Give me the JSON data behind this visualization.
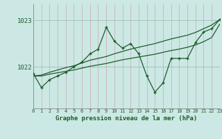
{
  "title": "Graphe pression niveau de la mer (hPa)",
  "bg_color": "#cce8e4",
  "line_color": "#1a5c2a",
  "x_labels": [
    "0",
    "1",
    "2",
    "3",
    "4",
    "5",
    "6",
    "7",
    "8",
    "9",
    "10",
    "11",
    "12",
    "13",
    "14",
    "15",
    "16",
    "17",
    "18",
    "19",
    "20",
    "21",
    "22",
    "23"
  ],
  "hours": [
    0,
    1,
    2,
    3,
    4,
    5,
    6,
    7,
    8,
    9,
    10,
    11,
    12,
    13,
    14,
    15,
    16,
    17,
    18,
    19,
    20,
    21,
    22,
    23
  ],
  "series_main": [
    1021.85,
    1021.55,
    1021.72,
    1021.8,
    1021.88,
    1022.0,
    1022.1,
    1022.28,
    1022.38,
    1022.85,
    1022.55,
    1022.4,
    1022.5,
    1022.28,
    1021.8,
    1021.45,
    1021.65,
    1022.18,
    1022.18,
    1022.18,
    1022.52,
    1022.75,
    1022.82,
    1023.02
  ],
  "series_trend1": [
    1021.8,
    1021.82,
    1021.88,
    1021.93,
    1021.98,
    1022.02,
    1022.08,
    1022.14,
    1022.18,
    1022.22,
    1022.28,
    1022.33,
    1022.38,
    1022.42,
    1022.46,
    1022.5,
    1022.55,
    1022.6,
    1022.64,
    1022.68,
    1022.74,
    1022.82,
    1022.9,
    1023.02
  ],
  "series_trend2": [
    1021.8,
    1021.8,
    1021.84,
    1021.87,
    1021.9,
    1021.93,
    1021.97,
    1022.01,
    1022.04,
    1022.07,
    1022.11,
    1022.15,
    1022.18,
    1022.21,
    1022.24,
    1022.27,
    1022.31,
    1022.35,
    1022.38,
    1022.42,
    1022.47,
    1022.54,
    1022.63,
    1022.92
  ],
  "yticks": [
    1022,
    1023
  ],
  "ylim": [
    1021.1,
    1023.35
  ],
  "xlim": [
    0,
    23
  ]
}
